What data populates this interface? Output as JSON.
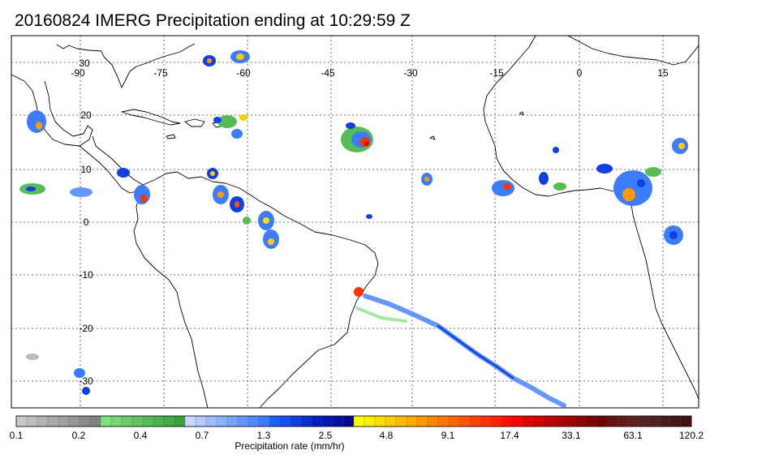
{
  "title": "20160824 IMERG Precipitation ending at 10:29:59 Z",
  "map": {
    "lon_labels": [
      "-90",
      "-75",
      "-60",
      "-45",
      "-30",
      "-15",
      "0",
      "15"
    ],
    "lat_labels": [
      "30",
      "20",
      "10",
      "0",
      "-10",
      "-20",
      "-30"
    ]
  },
  "colorbar": {
    "title": "Precipitation rate (mm/hr)",
    "labels": [
      "0.1",
      "0.2",
      "0.4",
      "0.7",
      "1.3",
      "2.5",
      "4.8",
      "9.1",
      "17.4",
      "33.1",
      "63.1",
      "120.2"
    ],
    "colors": [
      "#c8c8c8",
      "#bebebe",
      "#b4b4b4",
      "#aaaaaa",
      "#a0a0a0",
      "#969696",
      "#8c8c8c",
      "#828282",
      "#7ee07e",
      "#74d874",
      "#6acf6a",
      "#60c660",
      "#56bd56",
      "#4cb44c",
      "#42ab42",
      "#38a238",
      "#c8d8ff",
      "#b4cbff",
      "#a0beff",
      "#8cb1ff",
      "#78a4ff",
      "#6497ff",
      "#508aff",
      "#3c7dff",
      "#2060ff",
      "#1850f0",
      "#1040e0",
      "#0830d0",
      "#0020c0",
      "#0018b0",
      "#0010a0",
      "#000890",
      "#ffff00",
      "#ffee00",
      "#ffdd00",
      "#ffcc00",
      "#ffbb00",
      "#ffaa00",
      "#ff9900",
      "#ff8800",
      "#ff7700",
      "#ff6600",
      "#ff5500",
      "#ff4400",
      "#ff3300",
      "#ff2200",
      "#ff1100",
      "#ff0000",
      "#e00000",
      "#d00000",
      "#c00000",
      "#b00000",
      "#a00000",
      "#900000",
      "#800000",
      "#700000",
      "#6a1010",
      "#641818",
      "#5e2020",
      "#582020",
      "#522020",
      "#4c1c1c",
      "#461818",
      "#401414"
    ]
  }
}
